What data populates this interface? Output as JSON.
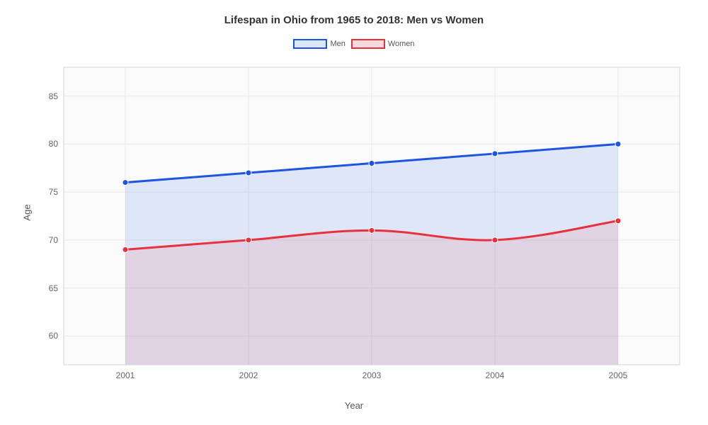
{
  "chart": {
    "type": "area-line",
    "title": "Lifespan in Ohio from 1965 to 2018: Men vs Women",
    "title_fontsize": 15,
    "title_color": "#333333",
    "background_color": "#ffffff",
    "plot_background_color": "#fbfbfb",
    "grid_color": "#e8e8e8",
    "axis_border_color": "#d6d6d6",
    "xlabel": "Year",
    "ylabel": "Age",
    "label_fontsize": 13,
    "label_color": "#555555",
    "tick_fontsize": 12,
    "tick_color": "#666666",
    "xlim": [
      2000.5,
      2005.5
    ],
    "ylim": [
      57,
      88
    ],
    "xticks": [
      2001,
      2002,
      2003,
      2004,
      2005
    ],
    "yticks": [
      60,
      65,
      70,
      75,
      80,
      85
    ],
    "series": [
      {
        "name": "Men",
        "x": [
          2001,
          2002,
          2003,
          2004,
          2005
        ],
        "y": [
          76,
          77,
          78,
          79,
          80
        ],
        "line_color": "#1b55e2",
        "fill_color": "#1b55e2",
        "fill_opacity": 0.12,
        "line_width": 3,
        "marker_radius": 4,
        "marker_fill": "#1b55e2"
      },
      {
        "name": "Women",
        "x": [
          2001,
          2002,
          2003,
          2004,
          2005
        ],
        "y": [
          69,
          70,
          71,
          70,
          72
        ],
        "line_color": "#e7313b",
        "fill_color": "#e7313b",
        "fill_opacity": 0.1,
        "line_width": 3,
        "marker_radius": 4,
        "marker_fill": "#e7313b"
      }
    ],
    "legend": {
      "position": "top-center",
      "swatch_border_width": 2,
      "items": [
        {
          "label": "Men",
          "stroke": "#1b55e2",
          "fill": "#dbe6fb"
        },
        {
          "label": "Women",
          "stroke": "#e7313b",
          "fill": "#f9dadc"
        }
      ]
    }
  }
}
